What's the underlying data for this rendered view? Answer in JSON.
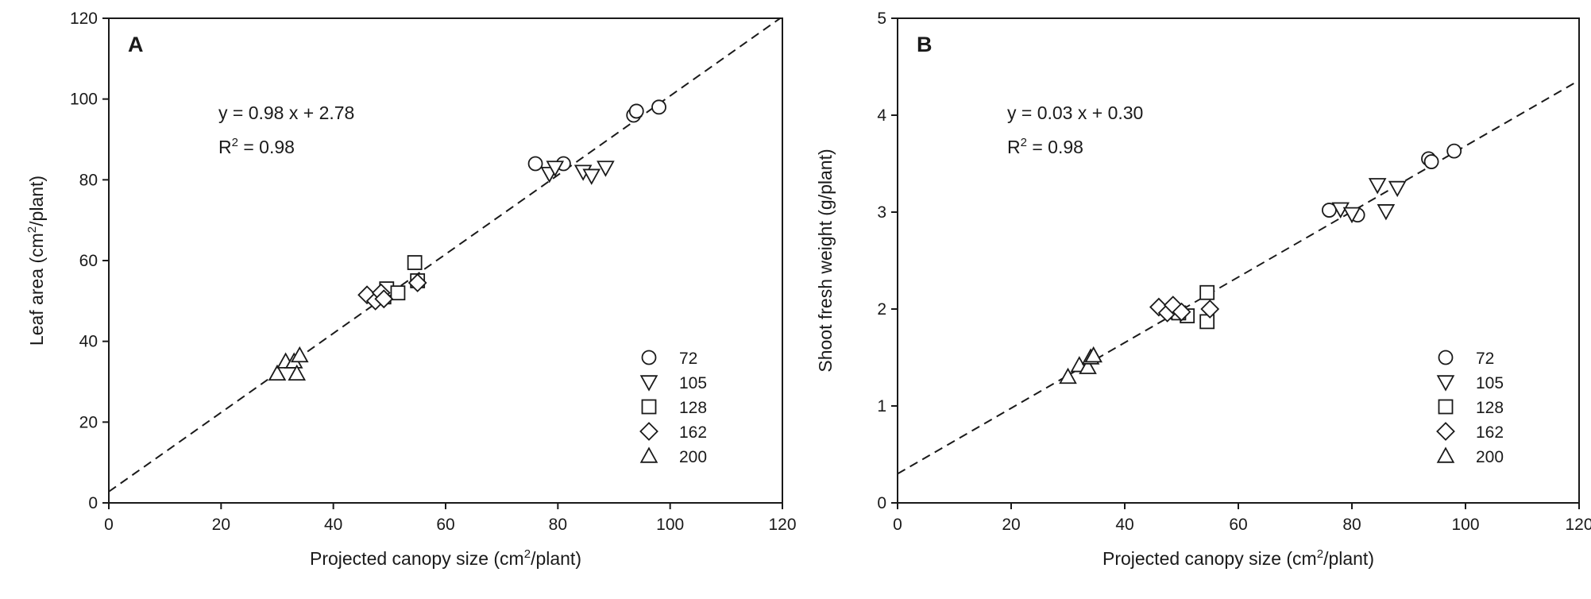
{
  "chart_data": [
    {
      "type": "scatter",
      "panel_label": "A",
      "xlabel": {
        "pre": "Projected canopy size (cm",
        "sup": "2",
        "post": "/plant)"
      },
      "ylabel": {
        "pre": "Leaf area (cm",
        "sup": "2",
        "post": "/plant)"
      },
      "xlim": [
        0,
        120
      ],
      "ylim": [
        0,
        120
      ],
      "xticks": [
        0,
        20,
        40,
        60,
        80,
        100,
        120
      ],
      "yticks": [
        0,
        20,
        40,
        60,
        80,
        100,
        120
      ],
      "equation": "y = 0.98 x + 2.78",
      "r2": {
        "pre": "R",
        "sup": "2",
        "post": " = 0.98"
      },
      "fit": {
        "slope": 0.98,
        "intercept": 2.78
      },
      "legend_position": "bottom-right",
      "series": [
        {
          "name": "72",
          "marker": "circle",
          "points": [
            [
              76,
              84
            ],
            [
              81,
              84
            ],
            [
              93.5,
              96
            ],
            [
              94,
              97
            ],
            [
              98,
              98
            ]
          ]
        },
        {
          "name": "105",
          "marker": "triangle-down",
          "points": [
            [
              78.5,
              81.5
            ],
            [
              79.5,
              83
            ],
            [
              84.5,
              82
            ],
            [
              86,
              81
            ],
            [
              88.5,
              83
            ]
          ]
        },
        {
          "name": "128",
          "marker": "square",
          "points": [
            [
              49,
              51
            ],
            [
              49.5,
              53
            ],
            [
              51.5,
              52
            ],
            [
              54.5,
              59.5
            ],
            [
              55,
              55
            ]
          ]
        },
        {
          "name": "162",
          "marker": "diamond",
          "points": [
            [
              46,
              51.5
            ],
            [
              47.5,
              50
            ],
            [
              48.5,
              52
            ],
            [
              49,
              50.5
            ],
            [
              55,
              54.5
            ]
          ]
        },
        {
          "name": "200",
          "marker": "triangle-up",
          "points": [
            [
              30,
              32
            ],
            [
              31.5,
              35
            ],
            [
              33,
              35
            ],
            [
              33.5,
              32
            ],
            [
              34,
              36.5
            ]
          ]
        }
      ]
    },
    {
      "type": "scatter",
      "panel_label": "B",
      "xlabel": {
        "pre": "Projected canopy size (cm",
        "sup": "2",
        "post": "/plant)"
      },
      "ylabel": {
        "pre": "Shoot fresh weight (g/plant)",
        "sup": "",
        "post": ""
      },
      "xlim": [
        0,
        120
      ],
      "ylim": [
        0,
        5
      ],
      "xticks": [
        0,
        20,
        40,
        60,
        80,
        100,
        120
      ],
      "yticks": [
        0,
        1,
        2,
        3,
        4,
        5
      ],
      "equation": "y = 0.03 x + 0.30",
      "r2": {
        "pre": "R",
        "sup": "2",
        "post": " = 0.98"
      },
      "fit": {
        "slope": 0.03383,
        "intercept": 0.3
      },
      "legend_position": "bottom-right",
      "series": [
        {
          "name": "72",
          "marker": "circle",
          "points": [
            [
              76,
              3.02
            ],
            [
              81,
              2.97
            ],
            [
              93.5,
              3.55
            ],
            [
              94,
              3.52
            ],
            [
              98,
              3.63
            ]
          ]
        },
        {
          "name": "105",
          "marker": "triangle-down",
          "points": [
            [
              78,
              3.03
            ],
            [
              80,
              2.98
            ],
            [
              84.5,
              3.28
            ],
            [
              86,
              3.01
            ],
            [
              88,
              3.25
            ]
          ]
        },
        {
          "name": "128",
          "marker": "square",
          "points": [
            [
              48.5,
              1.97
            ],
            [
              51,
              1.93
            ],
            [
              54.5,
              1.87
            ],
            [
              54.5,
              2.17
            ],
            [
              49.5,
              1.96
            ]
          ]
        },
        {
          "name": "162",
          "marker": "diamond",
          "points": [
            [
              46,
              2.02
            ],
            [
              47.5,
              1.96
            ],
            [
              48.5,
              2.04
            ],
            [
              50,
              1.97
            ],
            [
              55,
              2.0
            ]
          ]
        },
        {
          "name": "200",
          "marker": "triangle-up",
          "points": [
            [
              30,
              1.3
            ],
            [
              32,
              1.42
            ],
            [
              33.5,
              1.4
            ],
            [
              34,
              1.5
            ],
            [
              34.5,
              1.52
            ]
          ]
        }
      ]
    }
  ]
}
